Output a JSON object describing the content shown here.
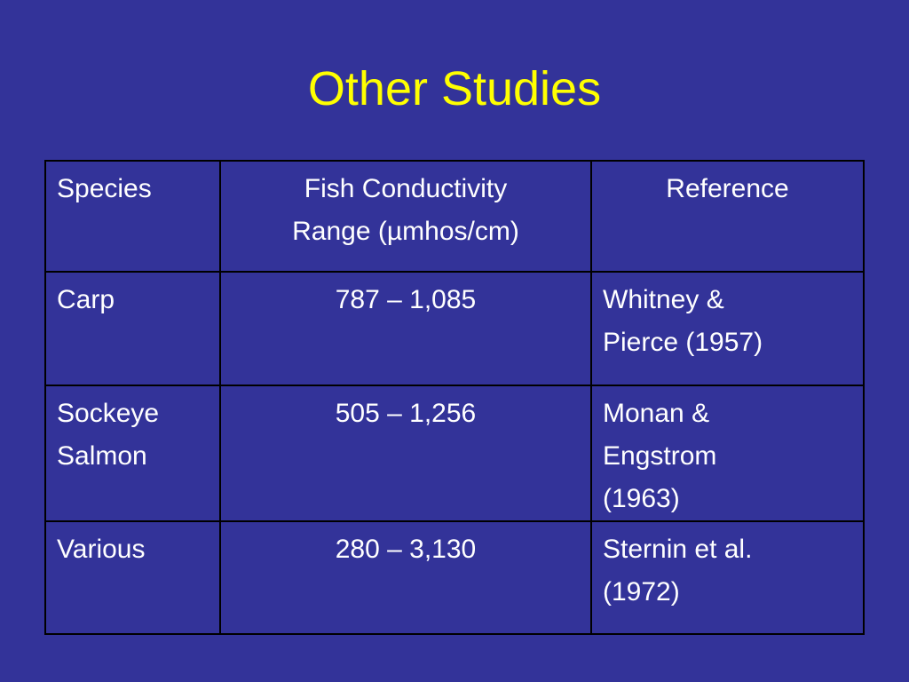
{
  "title": "Other Studies",
  "table": {
    "header": [
      "Species",
      "Fish Conductivity\nRange (µmhos/cm)",
      "Reference"
    ],
    "rows": [
      [
        "Carp",
        "787 – 1,085",
        "Whitney &\nPierce (1957)"
      ],
      [
        "Sockeye\nSalmon",
        "505 – 1,256",
        "Monan &\nEngstrom\n(1963)"
      ],
      [
        "Various",
        "280 – 3,130",
        "Sternin et al.\n(1972)"
      ]
    ]
  }
}
